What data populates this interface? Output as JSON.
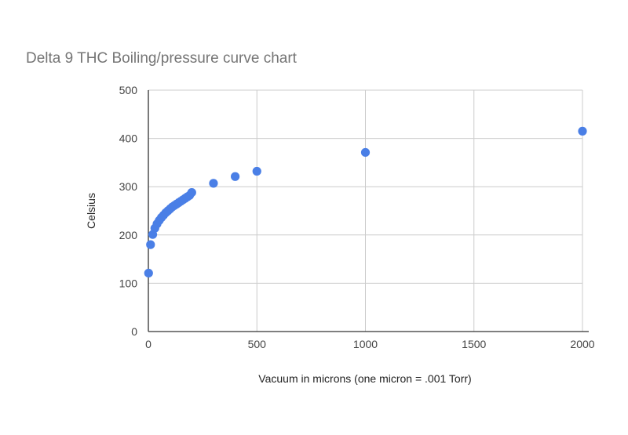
{
  "chart_data": {
    "type": "scatter",
    "title": "Delta 9 THC Boiling/pressure curve chart",
    "xlabel": "Vacuum in microns (one micron = .001 Torr)",
    "ylabel": "Celsius",
    "xlim": [
      0,
      2000
    ],
    "ylim": [
      0,
      500
    ],
    "xticks": [
      0,
      500,
      1000,
      1500,
      2000
    ],
    "yticks": [
      0,
      100,
      200,
      300,
      400,
      500
    ],
    "grid": true,
    "legend": "none",
    "marker_color": "#4a7fe6",
    "series": [
      {
        "x": [
          1,
          10,
          20,
          30,
          40,
          50,
          60,
          70,
          80,
          90,
          100,
          110,
          120,
          130,
          140,
          150,
          160,
          170,
          180,
          190,
          200,
          300,
          400,
          500,
          1000,
          2000
        ],
        "y": [
          121,
          180,
          201,
          214,
          223,
          230,
          236,
          241,
          246,
          250,
          254,
          258,
          261,
          264,
          267,
          270,
          273,
          276,
          279,
          282,
          288,
          307,
          321,
          332,
          371,
          415
        ]
      }
    ]
  }
}
